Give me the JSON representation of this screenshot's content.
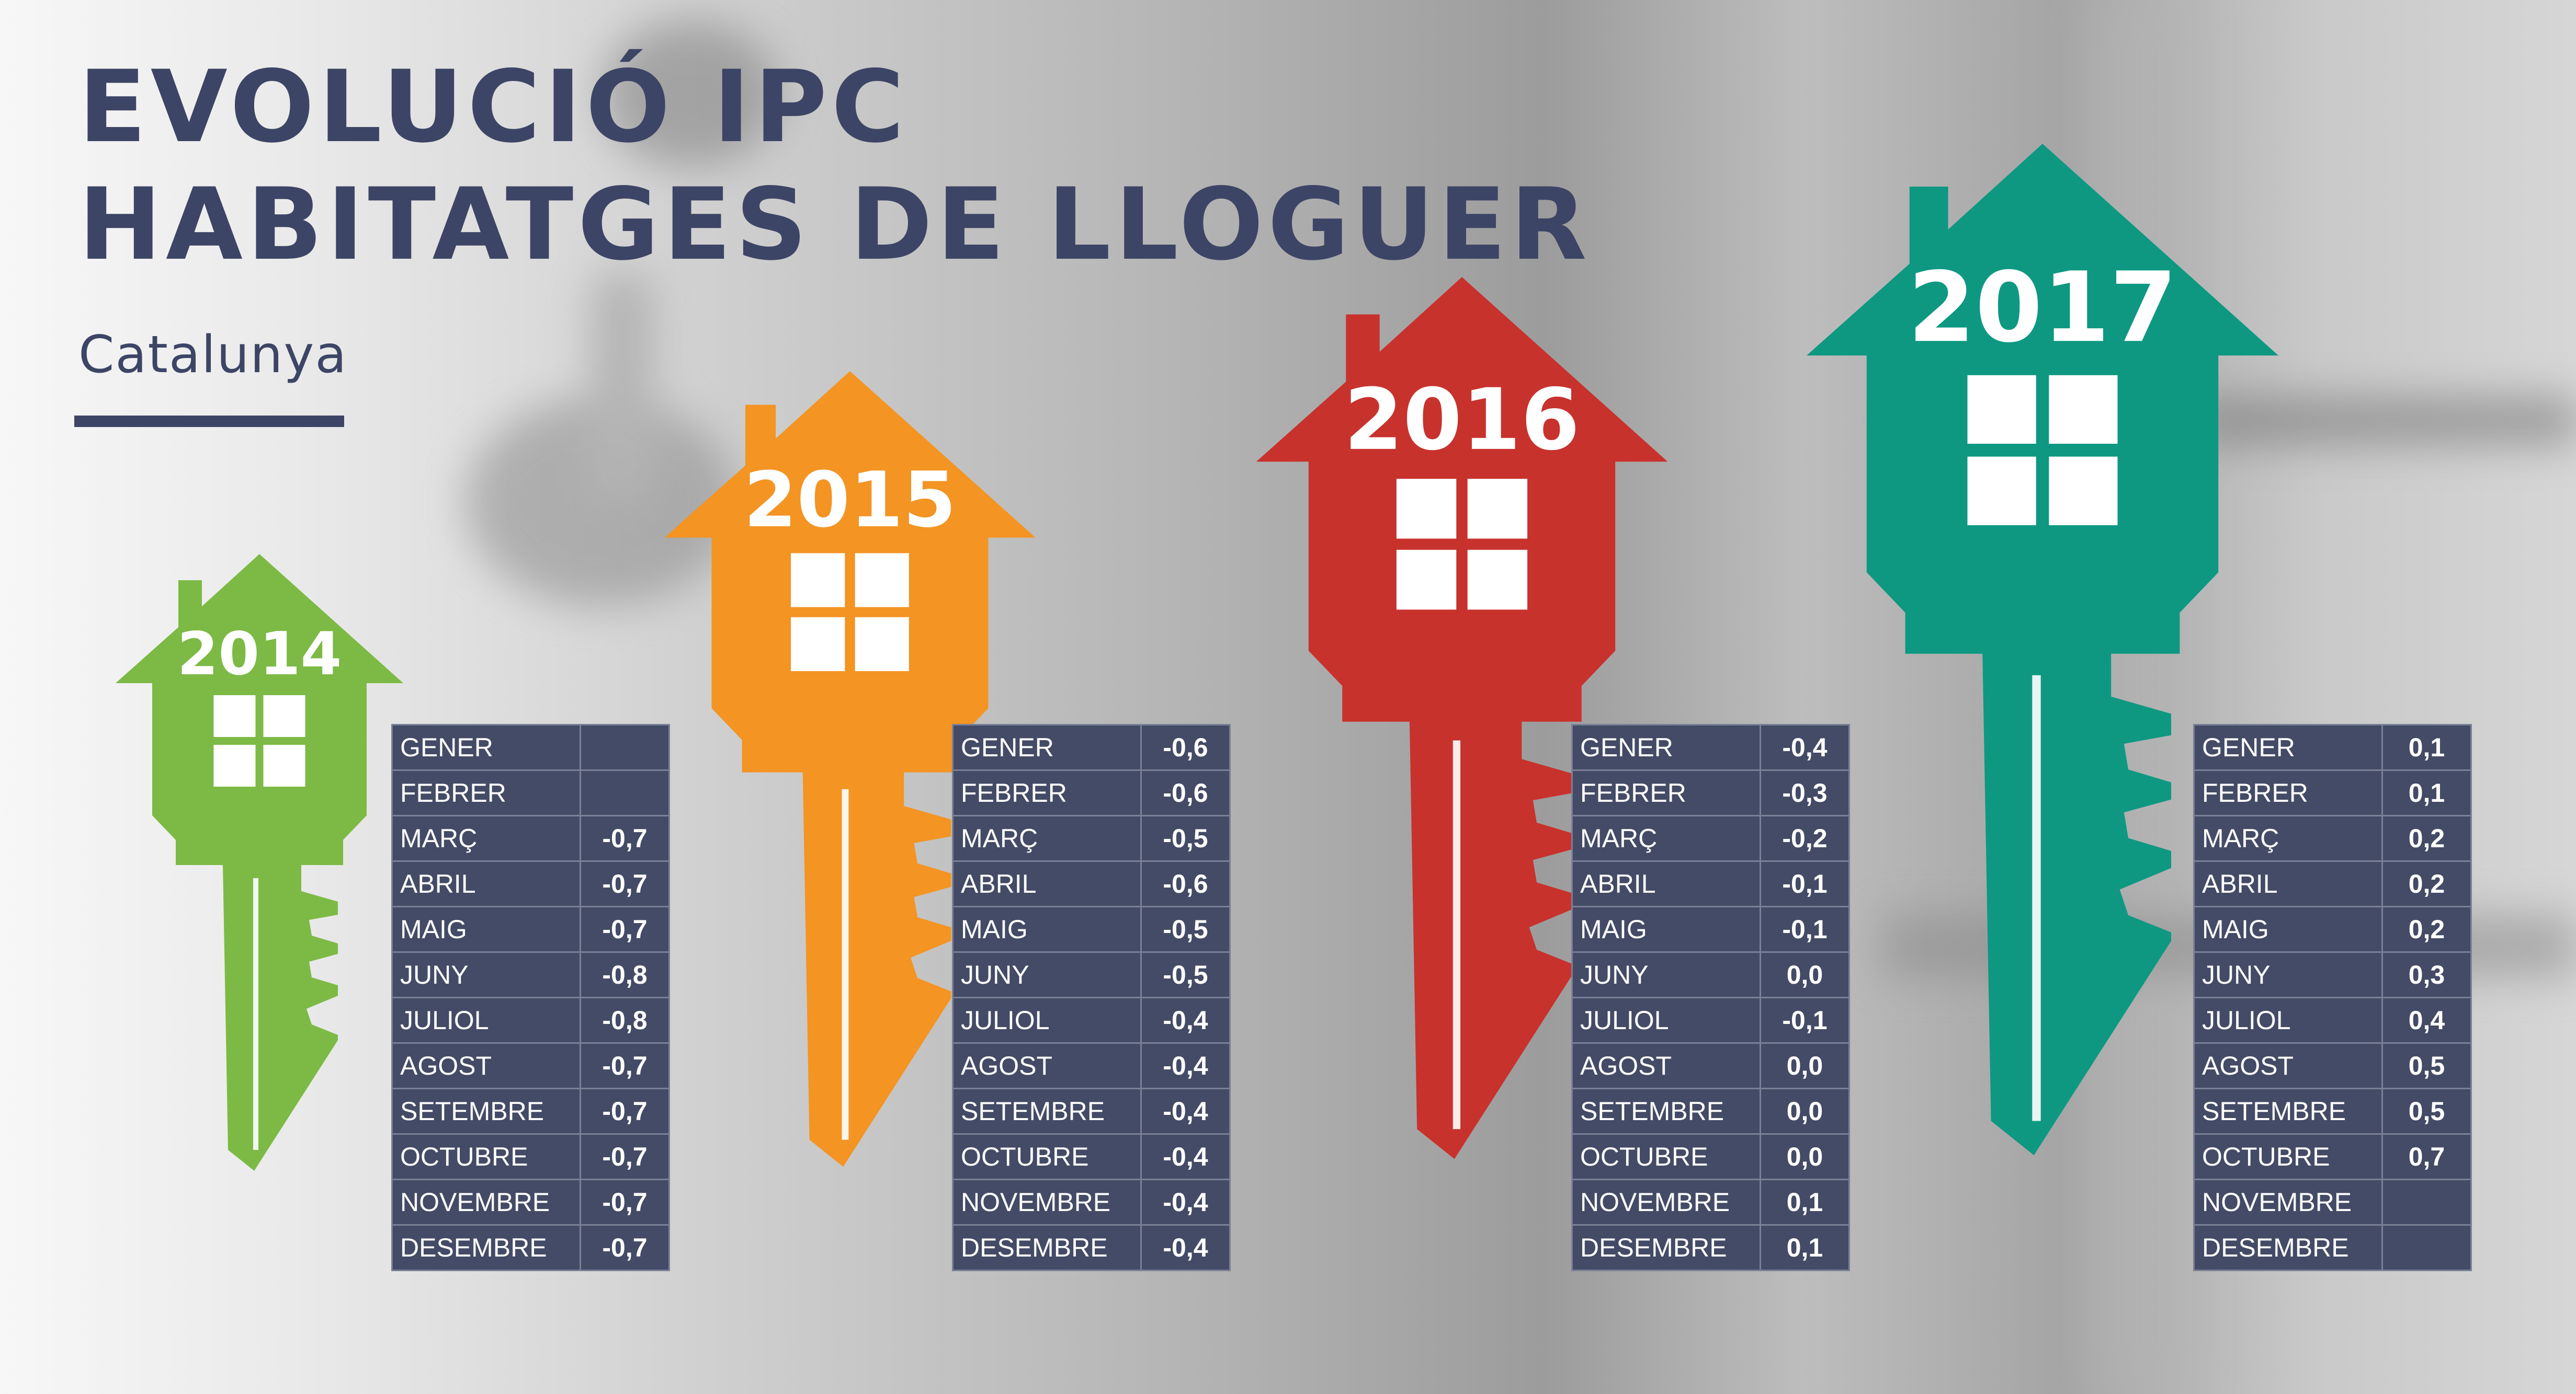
{
  "header": {
    "title_line_1": "EVOLUCIÓ IPC",
    "title_line_2": "HABITATGES DE LLOGUER",
    "subtitle": "Catalunya"
  },
  "colors": {
    "title": "#3d4566",
    "table_bg": "#434b66",
    "table_border": "#7a8096",
    "key_2014": "#7cba45",
    "key_2015": "#f39423",
    "key_2016": "#c8322d",
    "key_2017": "#0e9882"
  },
  "chart_data": {
    "type": "table",
    "title": "EVOLUCIÓ IPC HABITATGES DE LLOGUER",
    "subtitle": "Catalunya",
    "categories": [
      "GENER",
      "FEBRER",
      "MARÇ",
      "ABRIL",
      "MAIG",
      "JUNY",
      "JULIOL",
      "AGOST",
      "SETEMBRE",
      "OCTUBRE",
      "NOVEMBRE",
      "DESEMBRE"
    ],
    "series": [
      {
        "name": "2014",
        "values": [
          "",
          "",
          "-0,7",
          "-0,7",
          "-0,7",
          "-0,8",
          "-0,8",
          "-0,7",
          "-0,7",
          "-0,7",
          "-0,7",
          "-0,7"
        ]
      },
      {
        "name": "2015",
        "values": [
          "-0,6",
          "-0,6",
          "-0,5",
          "-0,6",
          "-0,5",
          "-0,5",
          "-0,4",
          "-0,4",
          "-0,4",
          "-0,4",
          "-0,4",
          "-0,4"
        ]
      },
      {
        "name": "2016",
        "values": [
          "-0,4",
          "-0,3",
          "-0,2",
          "-0,1",
          "-0,1",
          "0,0",
          "-0,1",
          "0,0",
          "0,0",
          "0,0",
          "0,1",
          "0,1"
        ]
      },
      {
        "name": "2017",
        "values": [
          "0,1",
          "0,1",
          "0,2",
          "0,2",
          "0,2",
          "0,3",
          "0,4",
          "0,5",
          "0,5",
          "0,7",
          "",
          ""
        ]
      }
    ]
  }
}
